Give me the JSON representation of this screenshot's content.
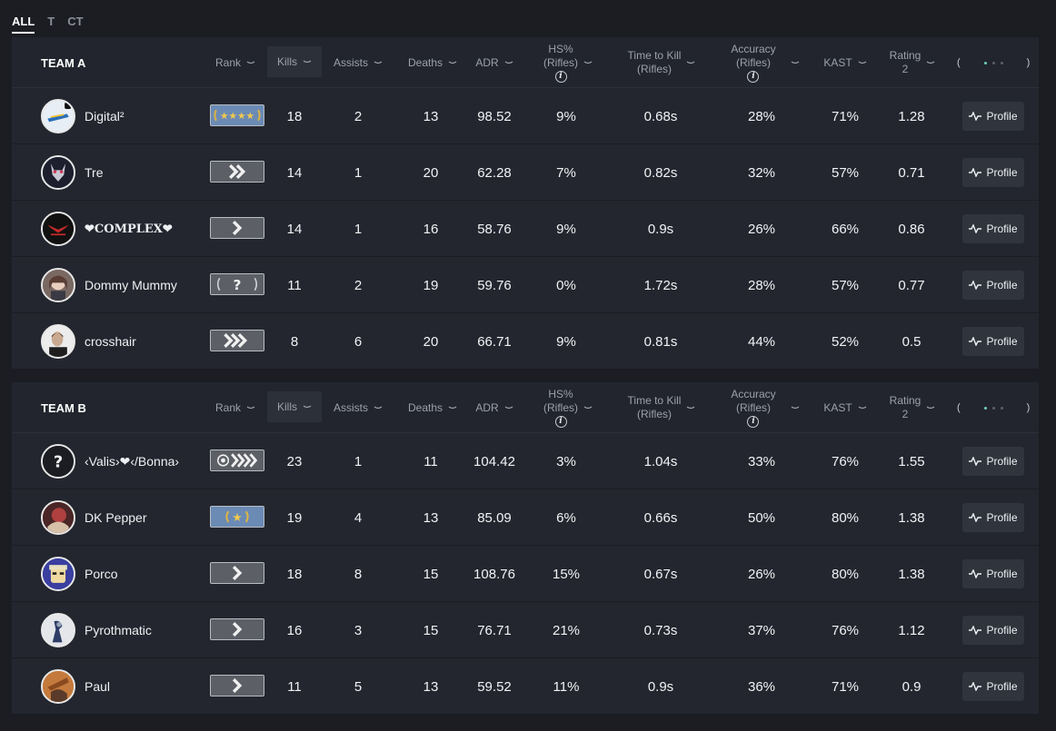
{
  "side_tabs": [
    "ALL",
    "T",
    "CT"
  ],
  "columns": {
    "rank": "Rank",
    "kills": "Kills",
    "assists": "Assists",
    "deaths": "Deaths",
    "adr": "ADR",
    "hs_line1": "HS%",
    "hs_line2": "(Rifles)",
    "ttk_line1": "Time to Kill",
    "ttk_line2": "(Rifles)",
    "acc_line1": "Accuracy",
    "acc_line2": "(Rifles)",
    "kast": "KAST",
    "rating_line1": "Rating",
    "rating_line2": "2",
    "pager_left": "(",
    "pager_right": ")",
    "info_icon": "i"
  },
  "profile_label": "Profile",
  "teams": [
    {
      "name": "TEAM A",
      "players": [
        {
          "name": "Digital²",
          "rank_icon": "gold-nova-stars",
          "kills": "18",
          "assists": "2",
          "deaths": "13",
          "adr": "98.52",
          "hs": "9%",
          "ttk": "0.68s",
          "accuracy": "28%",
          "kast": "71%",
          "rating": "1.28"
        },
        {
          "name": "Tre",
          "rank_icon": "silver-chevrons",
          "kills": "14",
          "assists": "1",
          "deaths": "20",
          "adr": "62.28",
          "hs": "7%",
          "ttk": "0.82s",
          "accuracy": "32%",
          "kast": "57%",
          "rating": "0.71"
        },
        {
          "name": "❤COMPLEX❤",
          "rank_icon": "silver-chevron",
          "kills": "14",
          "assists": "1",
          "deaths": "16",
          "adr": "58.76",
          "hs": "9%",
          "ttk": "0.9s",
          "accuracy": "26%",
          "kast": "66%",
          "rating": "0.86"
        },
        {
          "name": "Dommy Mummy",
          "rank_icon": "unranked-question",
          "kills": "11",
          "assists": "2",
          "deaths": "19",
          "adr": "59.76",
          "hs": "0%",
          "ttk": "1.72s",
          "accuracy": "28%",
          "kast": "57%",
          "rating": "0.77"
        },
        {
          "name": "crosshair",
          "rank_icon": "silver-triple-chevron",
          "kills": "8",
          "assists": "6",
          "deaths": "20",
          "adr": "66.71",
          "hs": "9%",
          "ttk": "0.81s",
          "accuracy": "44%",
          "kast": "52%",
          "rating": "0.5"
        }
      ]
    },
    {
      "name": "TEAM B",
      "players": [
        {
          "name": "‹Valis›❤‹/Bonna›",
          "rank_icon": "silver-elite-master",
          "kills": "23",
          "assists": "1",
          "deaths": "11",
          "adr": "104.42",
          "hs": "3%",
          "ttk": "1.04s",
          "accuracy": "33%",
          "kast": "76%",
          "rating": "1.55"
        },
        {
          "name": "DK Pepper",
          "rank_icon": "gold-nova-star",
          "kills": "19",
          "assists": "4",
          "deaths": "13",
          "adr": "85.09",
          "hs": "6%",
          "ttk": "0.66s",
          "accuracy": "50%",
          "kast": "80%",
          "rating": "1.38"
        },
        {
          "name": "Porco",
          "rank_icon": "silver-chevron",
          "kills": "18",
          "assists": "8",
          "deaths": "15",
          "adr": "108.76",
          "hs": "15%",
          "ttk": "0.67s",
          "accuracy": "26%",
          "kast": "80%",
          "rating": "1.38"
        },
        {
          "name": "Pyrothmatic",
          "rank_icon": "silver-chevron",
          "kills": "16",
          "assists": "3",
          "deaths": "15",
          "adr": "76.71",
          "hs": "21%",
          "ttk": "0.73s",
          "accuracy": "37%",
          "kast": "76%",
          "rating": "1.12"
        },
        {
          "name": "Paul",
          "rank_icon": "silver-chevron",
          "kills": "11",
          "assists": "5",
          "deaths": "13",
          "adr": "59.52",
          "hs": "11%",
          "ttk": "0.9s",
          "accuracy": "36%",
          "kast": "71%",
          "rating": "0.9"
        }
      ]
    }
  ]
}
